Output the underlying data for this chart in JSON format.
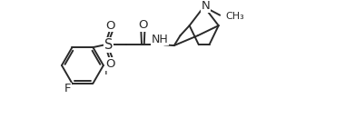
{
  "line_color": "#2a2a2a",
  "bg_color": "#ffffff",
  "line_width": 1.4,
  "font_size": 8.5,
  "xlim": [
    0,
    9.5
  ],
  "ylim": [
    -0.5,
    3.2
  ]
}
